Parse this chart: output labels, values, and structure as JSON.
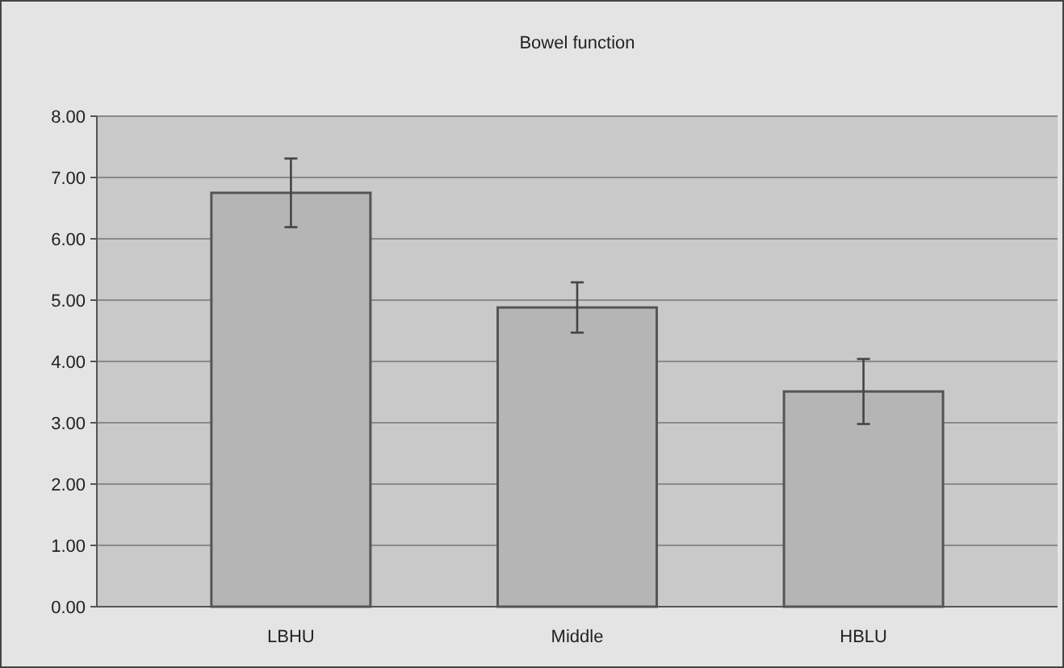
{
  "chart_data": {
    "type": "bar",
    "title": "Bowel function",
    "categories": [
      "LBHU",
      "Middle",
      "HBLU"
    ],
    "values": [
      6.75,
      4.88,
      3.51
    ],
    "errors": [
      0.56,
      0.41,
      0.53
    ],
    "color": "#b5b5b5",
    "ylim": [
      0,
      8
    ],
    "yticks": [
      {
        "value": 0,
        "label": "0.00"
      },
      {
        "value": 1,
        "label": "1.00"
      },
      {
        "value": 2,
        "label": "2.00"
      },
      {
        "value": 3,
        "label": "3.00"
      },
      {
        "value": 4,
        "label": "4.00"
      },
      {
        "value": 5,
        "label": "5.00"
      },
      {
        "value": 6,
        "label": "6.00"
      },
      {
        "value": 7,
        "label": "7.00"
      },
      {
        "value": 8,
        "label": "8.00"
      }
    ],
    "grid": "y"
  }
}
